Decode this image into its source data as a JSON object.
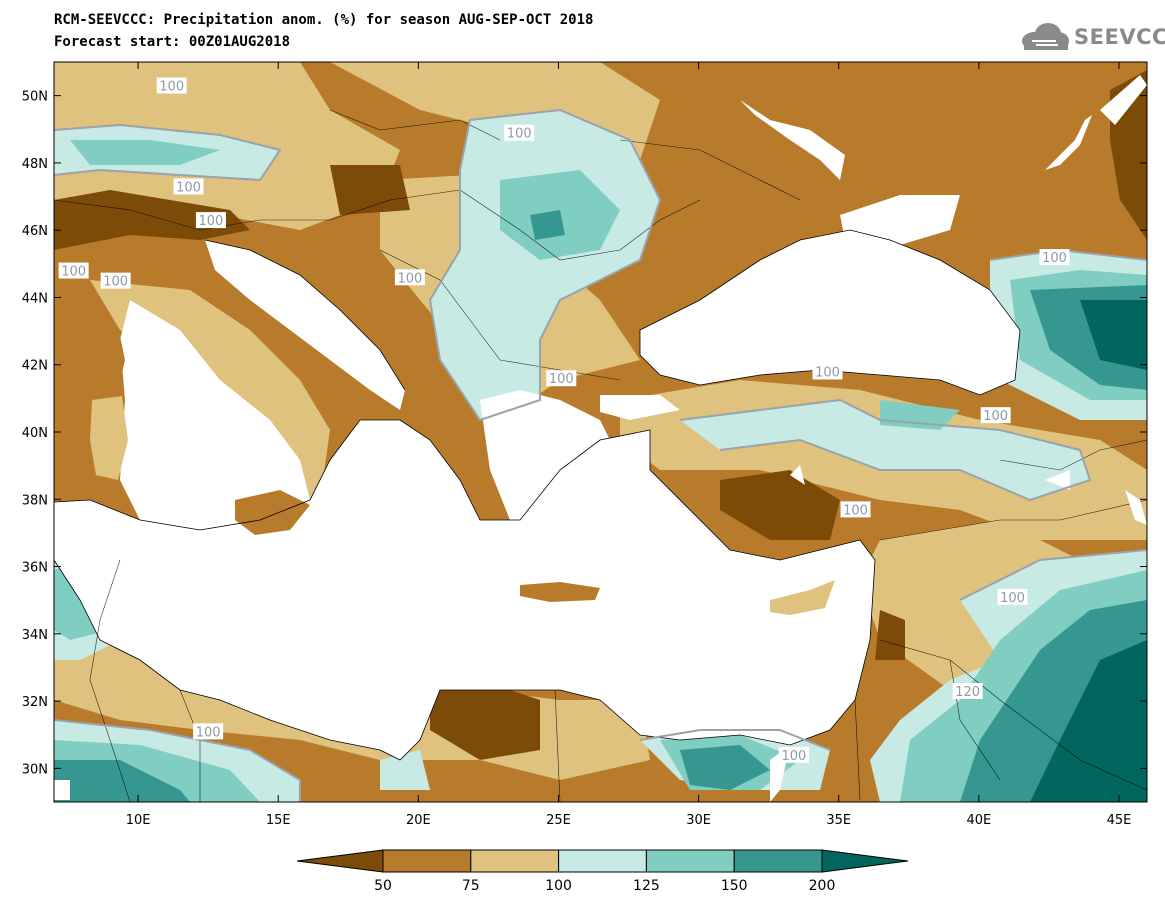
{
  "title": "RCM-SEEVCCC: Precipitation anom. (%) for season AUG-SEP-OCT 2018",
  "subtitle": "Forecast start: 00Z01AUG2018",
  "logo": {
    "text": "SEEVCCC",
    "icon": "cloud-logo-icon"
  },
  "map": {
    "x_ticks": [
      {
        "lon": 10,
        "label": "10E"
      },
      {
        "lon": 15,
        "label": "15E"
      },
      {
        "lon": 20,
        "label": "20E"
      },
      {
        "lon": 25,
        "label": "25E"
      },
      {
        "lon": 30,
        "label": "30E"
      },
      {
        "lon": 35,
        "label": "35E"
      },
      {
        "lon": 40,
        "label": "40E"
      },
      {
        "lon": 45,
        "label": "45E"
      }
    ],
    "y_ticks": [
      {
        "lat": 50,
        "label": "50N"
      },
      {
        "lat": 48,
        "label": "48N"
      },
      {
        "lat": 46,
        "label": "46N"
      },
      {
        "lat": 44,
        "label": "44N"
      },
      {
        "lat": 42,
        "label": "42N"
      },
      {
        "lat": 40,
        "label": "40N"
      },
      {
        "lat": 38,
        "label": "38N"
      },
      {
        "lat": 36,
        "label": "36N"
      },
      {
        "lat": 34,
        "label": "34N"
      },
      {
        "lat": 32,
        "label": "32N"
      },
      {
        "lat": 30,
        "label": "30N"
      }
    ],
    "contour_labels": [
      {
        "text": "100",
        "lon": 11.2,
        "lat": 50.3
      },
      {
        "text": "100",
        "lon": 23.6,
        "lat": 48.9
      },
      {
        "text": "100",
        "lon": 11.8,
        "lat": 47.3
      },
      {
        "text": "100",
        "lon": 12.6,
        "lat": 46.3
      },
      {
        "text": "100",
        "lon": 7.7,
        "lat": 44.8
      },
      {
        "text": "100",
        "lon": 9.2,
        "lat": 44.5
      },
      {
        "text": "100",
        "lon": 19.7,
        "lat": 44.6
      },
      {
        "text": "100",
        "lon": 25.1,
        "lat": 41.6
      },
      {
        "text": "100",
        "lon": 34.6,
        "lat": 41.8
      },
      {
        "text": "100",
        "lon": 40.6,
        "lat": 40.5
      },
      {
        "text": "100",
        "lon": 42.7,
        "lat": 45.2
      },
      {
        "text": "100",
        "lon": 35.6,
        "lat": 37.7
      },
      {
        "text": "100",
        "lon": 41.2,
        "lat": 35.1
      },
      {
        "text": "120",
        "lon": 39.6,
        "lat": 32.3
      },
      {
        "text": "100",
        "lon": 12.5,
        "lat": 31.1
      },
      {
        "text": "100",
        "lon": 33.4,
        "lat": 30.4
      }
    ]
  },
  "colorbar": {
    "levels": [
      "50",
      "75",
      "100",
      "125",
      "150",
      "200"
    ],
    "colors": [
      "#7d4b08",
      "#b87b2c",
      "#dfc27d",
      "#c7eae5",
      "#80cdc1",
      "#35978f",
      "#01665e"
    ]
  }
}
